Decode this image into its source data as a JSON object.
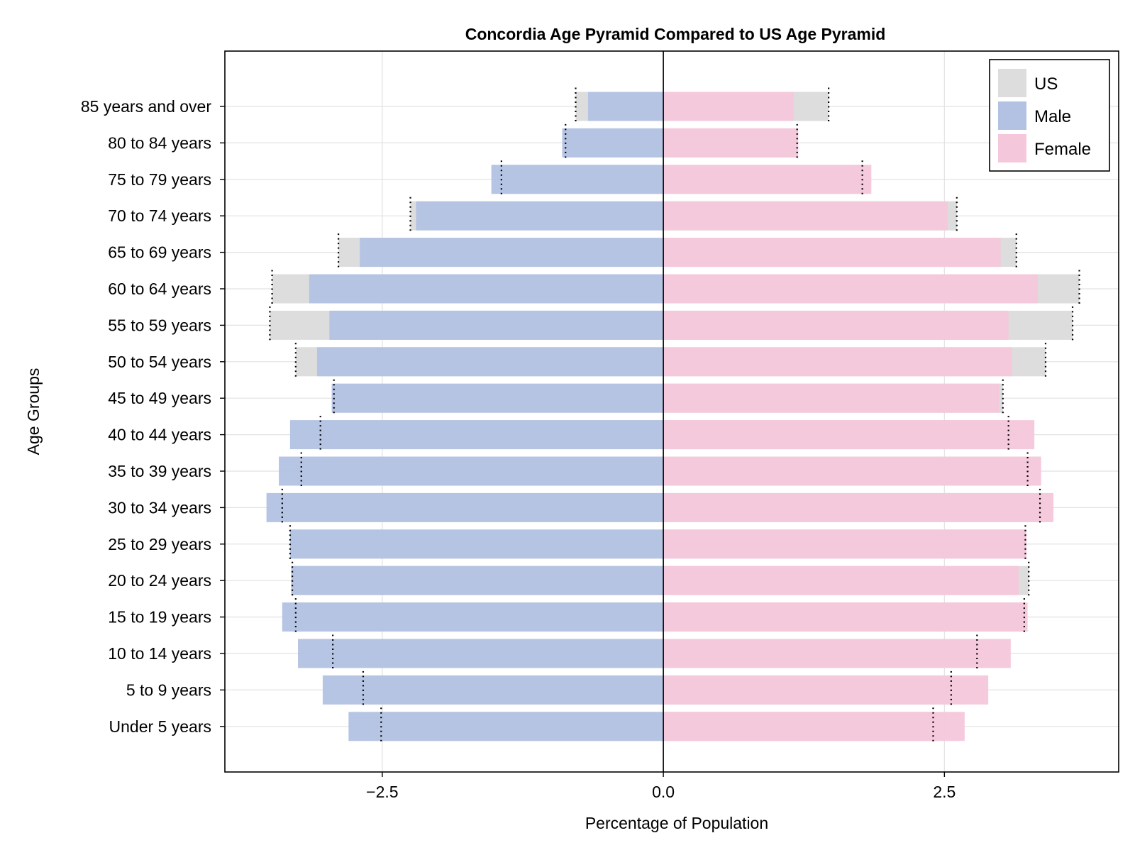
{
  "chart_data": {
    "type": "bar",
    "orientation": "horizontal",
    "title": "Concordia Age Pyramid Compared to US Age Pyramid",
    "xlabel": "Percentage of Population",
    "ylabel": "Age Groups",
    "xlim": [
      -3.9,
      4.05
    ],
    "xticks": [
      -2.5,
      0.0,
      2.5
    ],
    "xtick_labels": [
      "−2.5",
      "0.0",
      "2.5"
    ],
    "grid": true,
    "legend_position": "top-right",
    "categories": [
      "85 years and over",
      "80 to 84 years",
      "75 to 79 years",
      "70 to 74 years",
      "65 to 69 years",
      "60 to 64 years",
      "55 to 59 years",
      "50 to 54 years",
      "45 to 49 years",
      "40 to 44 years",
      "35 to 39 years",
      "30 to 34 years",
      "25 to 29 years",
      "20 to 24 years",
      "15 to 19 years",
      "10 to 14 years",
      "5 to 9 years",
      "Under 5 years"
    ],
    "series": [
      {
        "name": "US",
        "color": "#dddddd",
        "role": "us",
        "male": [
          0.78,
          0.87,
          1.44,
          2.25,
          2.89,
          3.48,
          3.5,
          3.27,
          2.93,
          3.05,
          3.22,
          3.39,
          3.32,
          3.3,
          3.27,
          2.94,
          2.67,
          2.51
        ],
        "female": [
          1.47,
          1.19,
          1.77,
          2.61,
          3.14,
          3.7,
          3.64,
          3.4,
          3.02,
          3.07,
          3.24,
          3.35,
          3.22,
          3.25,
          3.21,
          2.79,
          2.56,
          2.4
        ]
      },
      {
        "name": "Male",
        "color": "#b3c2e3",
        "role": "male",
        "values": [
          0.67,
          0.9,
          1.53,
          2.2,
          2.7,
          3.15,
          2.97,
          3.08,
          2.95,
          3.32,
          3.42,
          3.53,
          3.32,
          3.31,
          3.39,
          3.25,
          3.03,
          2.8
        ]
      },
      {
        "name": "Female",
        "color": "#f5c7db",
        "role": "female",
        "values": [
          1.16,
          1.2,
          1.85,
          2.53,
          3.0,
          3.33,
          3.07,
          3.1,
          2.99,
          3.3,
          3.36,
          3.47,
          3.23,
          3.16,
          3.24,
          3.09,
          2.89,
          2.68
        ]
      }
    ]
  }
}
